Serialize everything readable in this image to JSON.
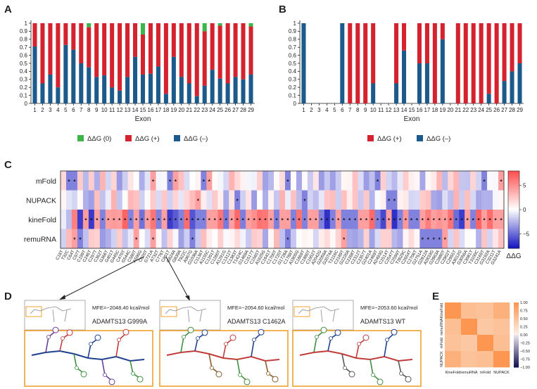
{
  "panels": {
    "A": "A",
    "B": "B",
    "C": "C",
    "D": "D",
    "E": "E"
  },
  "colors": {
    "zero": "#3cb54a",
    "pos": "#d4232e",
    "neg": "#1d5a8c"
  },
  "chart_data": [
    {
      "id": "A",
      "type": "bar",
      "stacked": true,
      "xlabel": "Exon",
      "ylabel": "",
      "categories": [
        "1",
        "2",
        "3",
        "4",
        "5",
        "6",
        "7",
        "8",
        "9",
        "10",
        "11",
        "12",
        "13",
        "14",
        "15",
        "16",
        "17",
        "18",
        "19",
        "20",
        "21",
        "22",
        "23",
        "24",
        "25",
        "26",
        "27",
        "28",
        "29"
      ],
      "yticks": [
        "0",
        "0.1",
        "0.2",
        "0.3",
        "0.4",
        "0.5",
        "0.6",
        "0.7",
        "0.8",
        "0.9",
        "1"
      ],
      "ylim": [
        0,
        1
      ],
      "series": [
        {
          "name": "ΔΔG (–)",
          "color": "#1d5a8c",
          "values": [
            0.71,
            0.25,
            0.36,
            0.2,
            0.73,
            0.67,
            0.5,
            0.45,
            0.33,
            0.35,
            0.2,
            0.16,
            0.33,
            0.58,
            0.36,
            0.37,
            0.46,
            0.12,
            0.58,
            0.33,
            0.25,
            0.09,
            0.22,
            0.42,
            0.31,
            0.25,
            0.33,
            0.3,
            0.36
          ]
        },
        {
          "name": "ΔΔG (+)",
          "color": "#d4232e",
          "values": [
            0.29,
            0.75,
            0.64,
            0.8,
            0.27,
            0.33,
            0.5,
            0.5,
            0.67,
            0.65,
            0.8,
            0.84,
            0.67,
            0.42,
            0.5,
            0.63,
            0.54,
            0.88,
            0.42,
            0.67,
            0.75,
            0.91,
            0.68,
            0.58,
            0.66,
            0.75,
            0.67,
            0.7,
            0.6
          ]
        },
        {
          "name": "ΔΔG (0)",
          "color": "#3cb54a",
          "values": [
            0,
            0,
            0,
            0,
            0,
            0,
            0,
            0.05,
            0,
            0,
            0,
            0,
            0,
            0,
            0.14,
            0,
            0,
            0,
            0,
            0,
            0,
            0,
            0.1,
            0,
            0.03,
            0,
            0,
            0,
            0.04
          ]
        }
      ],
      "legend": [
        "ΔΔG (0)",
        "ΔΔG (+)",
        "ΔΔG (–)"
      ]
    },
    {
      "id": "B",
      "type": "bar",
      "stacked": true,
      "xlabel": "Exon",
      "ylabel": "",
      "categories": [
        "1",
        "2",
        "3",
        "4",
        "5",
        "6",
        "7",
        "8",
        "9",
        "10",
        "11",
        "12",
        "13",
        "14",
        "15",
        "16",
        "17",
        "18",
        "19",
        "20",
        "21",
        "22",
        "23",
        "24",
        "25",
        "26",
        "27",
        "28",
        "29"
      ],
      "yticks": [
        "0",
        "0.1",
        "0.2",
        "0.3",
        "0.4",
        "0.5",
        "0.6",
        "0.7",
        "0.8",
        "0.9",
        "1"
      ],
      "ylim": [
        0,
        1
      ],
      "series": [
        {
          "name": "ΔΔG (–)",
          "color": "#1d5a8c",
          "values": [
            1,
            0,
            0,
            0,
            0,
            1,
            0,
            0,
            0,
            0.25,
            0,
            0,
            0.25,
            0.66,
            0,
            0.5,
            0.5,
            0,
            0.8,
            0,
            0,
            0,
            0,
            0,
            0.12,
            0,
            0.28,
            0.4,
            0.5
          ]
        },
        {
          "name": "ΔΔG (+)",
          "color": "#d4232e",
          "values": [
            0,
            0,
            0,
            0,
            0,
            0,
            1,
            1,
            1,
            0.75,
            0,
            0,
            0.75,
            0.34,
            0,
            0.5,
            0.5,
            1,
            0.2,
            0,
            1,
            1,
            1,
            1,
            0.88,
            1,
            0.72,
            0.6,
            0.5
          ]
        }
      ],
      "legend": [
        "ΔΔG (+)",
        "ΔΔG (–)"
      ]
    },
    {
      "id": "C",
      "type": "heatmap",
      "rows": [
        "mFold",
        "NUPACK",
        "kineFold",
        "remuRNA"
      ],
      "columns": [
        "C18T",
        "T32C",
        "C64T",
        "C97T",
        "C199T",
        "C246T",
        "C297T",
        "C362T",
        "G366T",
        "G401T",
        "G445C",
        "C470T",
        "G544C",
        "C580T",
        "A596G",
        "C620T",
        "G721A",
        "A732T",
        "C776T",
        "C801T",
        "G824A",
        "G839A",
        "T922C",
        "A967G",
        "G1036A",
        "C1136T",
        "A1155C",
        "C1201T",
        "C1260T",
        "A1291G",
        "C1312T",
        "C1383T",
        "T1424C",
        "G1469A",
        "C1517T",
        "C1565T",
        "A1625G",
        "C1641T",
        "C1700T",
        "C1720T",
        "G1728A",
        "C1788T",
        "A1805G",
        "C1869T",
        "C1880T",
        "C1952T",
        "A2042G",
        "G2059A",
        "G2074A",
        "T2116C",
        "C2189T",
        "G2220A",
        "C2268T",
        "C2312T",
        "C2357T",
        "G2401A",
        "C2469T",
        "A2493G",
        "C2514T",
        "C2547T",
        "C2599T",
        "T2629C",
        "C2654T",
        "C2706T",
        "G2751A",
        "G2812A",
        "A2833G",
        "G2863A",
        "C2880T",
        "C2902T",
        "C2955T",
        "A3012G",
        "G3056A",
        "C3081T",
        "T3100C",
        "C3169T",
        "G3192A",
        "C3211T",
        "G3241A"
      ],
      "star_positions": {
        "mFold": [
          1,
          2,
          16,
          19,
          20,
          25,
          26,
          40,
          56,
          75,
          78
        ],
        "NUPACK": [
          24,
          31,
          43,
          58,
          59
        ],
        "kineFold": [
          4,
          5,
          6,
          7,
          8,
          9,
          10,
          11,
          12,
          13,
          14,
          15,
          16,
          17,
          18,
          19,
          20,
          21,
          22,
          23,
          24,
          25,
          26,
          27,
          28,
          29,
          30,
          31,
          32,
          33,
          34,
          35,
          36,
          37,
          38,
          39,
          40,
          41,
          42,
          43,
          44,
          45,
          46,
          47,
          48,
          49,
          50,
          51,
          52,
          53,
          54,
          55,
          56,
          57,
          58,
          59,
          60,
          61,
          62,
          63,
          64,
          65,
          66,
          67,
          68,
          69,
          70,
          71,
          72,
          73,
          74,
          75,
          76,
          77,
          78
        ],
        "remuRNA": [
          2,
          3,
          13,
          16,
          23,
          40,
          50,
          64,
          65,
          66,
          67,
          68
        ]
      },
      "colorbar": {
        "label": "ΔΔG",
        "ticks": [
          "5",
          "0",
          "−5"
        ],
        "min": -8,
        "max": 8
      }
    },
    {
      "id": "E",
      "type": "heatmap",
      "rows": [
        "KineFold",
        "remuRNA",
        "mFold",
        "NUPACK"
      ],
      "columns": [
        "KineFold",
        "remuRNA",
        "mFold",
        "NUPACK"
      ],
      "values": [
        [
          1,
          0.55,
          0.5,
          0.7
        ],
        [
          0.55,
          1,
          0.45,
          0.5
        ],
        [
          0.5,
          0.45,
          1,
          0.55
        ],
        [
          0.7,
          0.5,
          0.55,
          1
        ]
      ],
      "colorbar": {
        "ticks": [
          "1.00",
          "0.75",
          "0.50",
          "0.25",
          "0.00",
          "−0.25",
          "−0.50",
          "−0.75",
          "−1.00"
        ],
        "min": -1,
        "max": 1
      }
    }
  ],
  "panelD": {
    "structures": [
      {
        "mfe": "MFE=−2048.40 kcal/mol",
        "title": "ADAMTS13 G999A"
      },
      {
        "mfe": "MFE=−2054.60 kcal/mol",
        "title": "ADAMTS13 C1462A"
      },
      {
        "mfe": "MFE=−2053.60 kcal/mol",
        "title": "ADAMTS13 WT"
      }
    ]
  }
}
